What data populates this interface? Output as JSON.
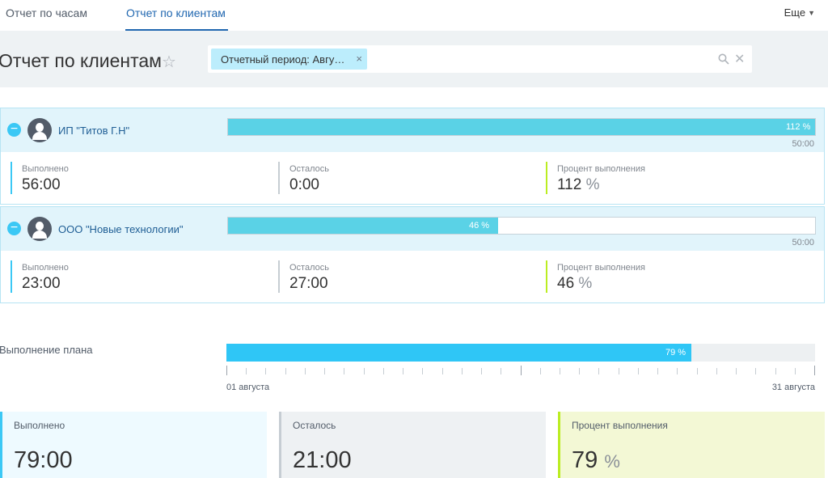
{
  "tabs": [
    {
      "label": "Отчет по часам"
    },
    {
      "label": "Отчет по клиентам"
    }
  ],
  "more_label": "Еще",
  "header": {
    "title": "Отчет по клиентам",
    "filter_chip": "Отчетный период: Авгу…"
  },
  "clients": [
    {
      "name": "ИП \"Титов Г.Н\"",
      "bar_percent_label": "112 %",
      "bar_fill_percent": 100,
      "bar_max": "50:00",
      "done_label": "Выполнено",
      "done_value": "56:00",
      "left_label": "Осталось",
      "left_value": "0:00",
      "percent_label": "Процент выполнения",
      "percent_value": "112",
      "percent_unit": "%"
    },
    {
      "name": "ООО \"Новые технологии\"",
      "bar_percent_label": "46 %",
      "bar_fill_percent": 46,
      "bar_max": "50:00",
      "done_label": "Выполнено",
      "done_value": "23:00",
      "left_label": "Осталось",
      "left_value": "27:00",
      "percent_label": "Процент выполнения",
      "percent_value": "46",
      "percent_unit": "%"
    }
  ],
  "plan": {
    "label": "Выполнение плана",
    "percent_label": "79 %",
    "fill_percent": 79,
    "date_start": "01 августа",
    "date_end": "31 августа"
  },
  "totals": {
    "done_label": "Выполнено",
    "done_value": "79:00",
    "left_label": "Осталось",
    "left_value": "21:00",
    "percent_label": "Процент выполнения",
    "percent_value": "79",
    "percent_unit": "%"
  },
  "colors": {
    "accent": "#2067b0",
    "bar_fill": "#5ad2e6",
    "plan_fill": "#2fc6f6",
    "green": "#bbed21"
  }
}
